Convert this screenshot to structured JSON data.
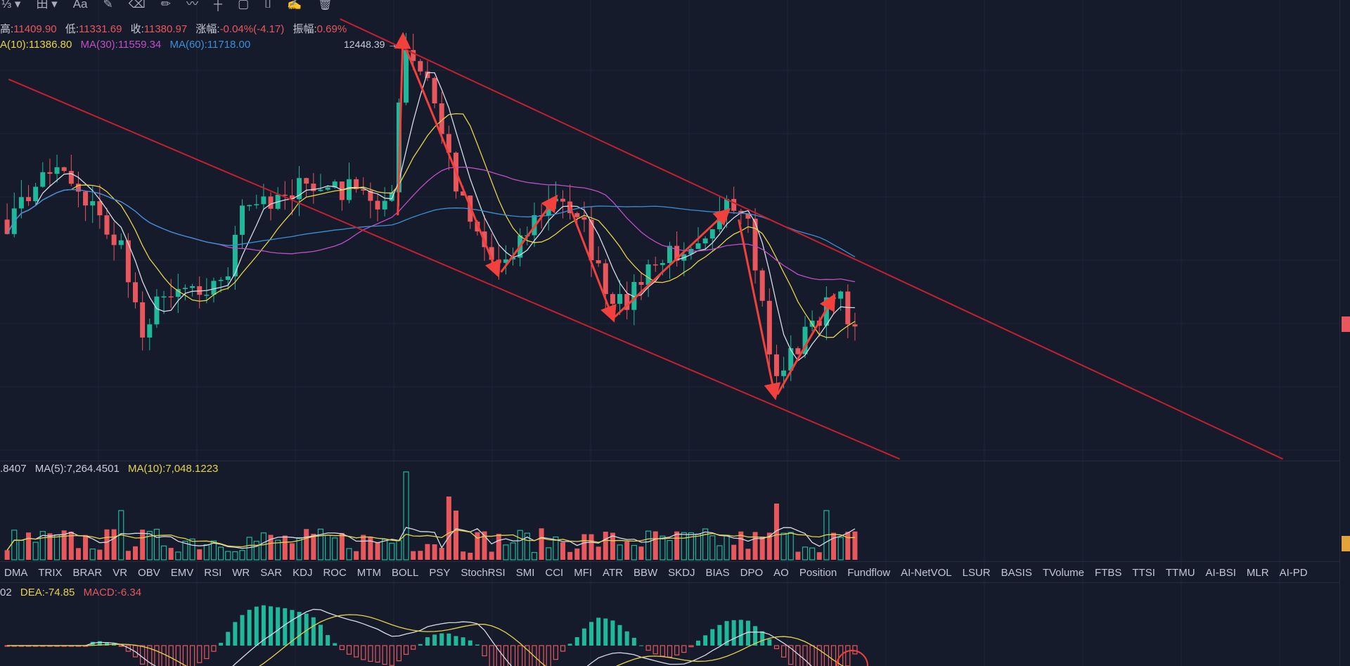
{
  "toolbar": {
    "icons": [
      "ratio-icon",
      "chevron-down-icon",
      "grid-layout-icon",
      "chevron-down-icon",
      "text-icon",
      "ruler-icon",
      "eraser-icon",
      "pencil-icon",
      "brush-icon",
      "measure-icon",
      "lock-icon",
      "bookmark-icon",
      "edit-icon",
      "trash-icon"
    ],
    "text_label": "Aa"
  },
  "ohlc": {
    "high_label": "高:",
    "high": "11409.90",
    "low_label": "低:",
    "low": "11331.69",
    "close_label": "收:",
    "close": "11380.97",
    "change_label": "涨幅:",
    "change": "-0.04%(-4.17)",
    "amp_label": "振幅:",
    "amp": "0.69%"
  },
  "ma": {
    "ma10": "A(10):11386.80",
    "ma30": "MA(30):11559.34",
    "ma60": "MA(60):11718.00",
    "peak_label": "12448.39 →"
  },
  "volume": {
    "v": ".8407",
    "ma5": "MA(5):7,264.4501",
    "ma10": "MA(10):7,048.1223"
  },
  "macd": {
    "dif": "02",
    "dea": "DEA:-74.85",
    "macd": "MACD:-6.34"
  },
  "tabs": [
    "DMA",
    "TRIX",
    "BRAR",
    "VR",
    "OBV",
    "EMV",
    "RSI",
    "WR",
    "SAR",
    "KDJ",
    "ROC",
    "MTM",
    "BOLL",
    "PSY",
    "StochRSI",
    "SMI",
    "CCI",
    "MFI",
    "ATR",
    "BBW",
    "SKDJ",
    "BIAS",
    "DPO",
    "AO",
    "Position",
    "Fundflow",
    "AI-NetVOL",
    "LSUR",
    "BASIS",
    "TVolume",
    "FTBS",
    "TTSI",
    "TTMU",
    "AI-BSI",
    "MLR",
    "AI-PD"
  ],
  "colors": {
    "up": "#1fb89a",
    "down": "#e8575c",
    "ma10": "#e6d34a",
    "ma30": "#c04fc4",
    "ma60": "#3b8fd6",
    "trend": "#c4202e",
    "arrow": "#f2403c"
  }
}
